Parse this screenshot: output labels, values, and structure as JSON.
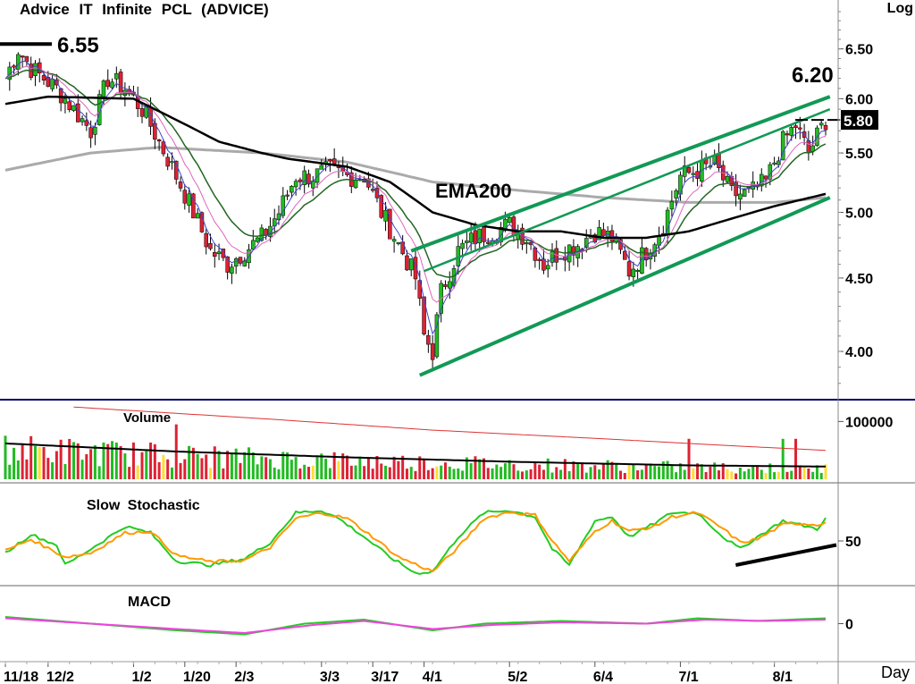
{
  "header": {
    "title": "Advice  IT  Infinite  PCL  (ADVICE)",
    "scale_label": "Log",
    "x_unit_label": "Day"
  },
  "colors": {
    "up_candle": "#22bb22",
    "down_candle": "#dd2233",
    "ema200": "#aaaaaa",
    "ema_black": "#000000",
    "ema_green": "#226622",
    "ema_pink": "#dd66bb",
    "ema_blue": "#4444cc",
    "channel": "#119955",
    "stoch_k": "#22cc22",
    "stoch_d": "#ff9900",
    "macd": "#22cc22",
    "signal": "#ee44dd",
    "volume_avg_red": "#dd3333",
    "divider": "#000066"
  },
  "annotations": {
    "high_label": "6.55",
    "target_label": "6.20",
    "last_label": "5.80",
    "ema_label": "EMA200"
  },
  "panels": {
    "volume_label": "Volume",
    "stoch_label": "Slow  Stochastic",
    "macd_label": "MACD"
  },
  "chart_data": [
    {
      "type": "candlestick",
      "title": "Advice  IT  Infinite  PCL  (ADVICE)",
      "y_scale": "log",
      "ylim": [
        3.75,
        6.95
      ],
      "y_ticks": [
        "6.50",
        "6.00",
        "5.50",
        "5.00",
        "4.50",
        "4.00"
      ],
      "x_tick_labels": [
        "11/18",
        "12/2",
        "1/2",
        "1/20",
        "2/3",
        "3/3",
        "3/17",
        "4/1",
        "5/2",
        "6/4",
        "7/1",
        "8/1"
      ],
      "x_tick_index": [
        0,
        10,
        30,
        42,
        54,
        74,
        86,
        98,
        118,
        138,
        158,
        180
      ],
      "trading_days": 193,
      "close_key_points": [
        [
          0,
          6.2
        ],
        [
          3,
          6.5
        ],
        [
          6,
          6.3
        ],
        [
          12,
          6.1
        ],
        [
          20,
          5.7
        ],
        [
          24,
          6.2
        ],
        [
          28,
          6.1
        ],
        [
          32,
          5.9
        ],
        [
          36,
          5.6
        ],
        [
          40,
          5.3
        ],
        [
          44,
          5.0
        ],
        [
          48,
          4.7
        ],
        [
          52,
          4.6
        ],
        [
          56,
          4.7
        ],
        [
          60,
          4.8
        ],
        [
          64,
          5.0
        ],
        [
          68,
          5.3
        ],
        [
          72,
          5.3
        ],
        [
          76,
          5.35
        ],
        [
          80,
          5.3
        ],
        [
          84,
          5.3
        ],
        [
          88,
          5.0
        ],
        [
          92,
          4.75
        ],
        [
          96,
          4.5
        ],
        [
          98,
          4.1
        ],
        [
          100,
          4.0
        ],
        [
          102,
          4.4
        ],
        [
          106,
          4.7
        ],
        [
          110,
          4.8
        ],
        [
          114,
          4.85
        ],
        [
          118,
          4.9
        ],
        [
          122,
          4.8
        ],
        [
          126,
          4.6
        ],
        [
          130,
          4.7
        ],
        [
          134,
          4.75
        ],
        [
          138,
          4.85
        ],
        [
          142,
          4.8
        ],
        [
          146,
          4.55
        ],
        [
          150,
          4.7
        ],
        [
          154,
          4.9
        ],
        [
          158,
          5.3
        ],
        [
          162,
          5.35
        ],
        [
          166,
          5.4
        ],
        [
          170,
          5.15
        ],
        [
          174,
          5.15
        ],
        [
          178,
          5.25
        ],
        [
          182,
          5.6
        ],
        [
          185,
          5.75
        ],
        [
          188,
          5.5
        ],
        [
          192,
          5.8
        ]
      ],
      "ema200_key_points": [
        [
          0,
          5.35
        ],
        [
          20,
          5.5
        ],
        [
          36,
          5.55
        ],
        [
          60,
          5.5
        ],
        [
          80,
          5.42
        ],
        [
          100,
          5.25
        ],
        [
          120,
          5.18
        ],
        [
          140,
          5.12
        ],
        [
          160,
          5.08
        ],
        [
          180,
          5.08
        ],
        [
          192,
          5.12
        ]
      ],
      "ema50_key_points": [
        [
          0,
          5.95
        ],
        [
          10,
          6.02
        ],
        [
          30,
          6.0
        ],
        [
          40,
          5.8
        ],
        [
          50,
          5.6
        ],
        [
          60,
          5.5
        ],
        [
          66,
          5.45
        ],
        [
          80,
          5.38
        ],
        [
          90,
          5.25
        ],
        [
          100,
          5.0
        ],
        [
          110,
          4.9
        ],
        [
          120,
          4.85
        ],
        [
          130,
          4.85
        ],
        [
          140,
          4.8
        ],
        [
          150,
          4.8
        ],
        [
          160,
          4.85
        ],
        [
          170,
          4.95
        ],
        [
          180,
          5.05
        ],
        [
          192,
          5.15
        ]
      ],
      "channel_lines": [
        {
          "name": "upper",
          "points": [
            [
              95,
              4.7
            ],
            [
              193,
              6.02
            ]
          ]
        },
        {
          "name": "middle",
          "points": [
            [
              98,
              4.55
            ],
            [
              193,
              5.9
            ]
          ]
        },
        {
          "name": "lower",
          "points": [
            [
              97,
              3.85
            ],
            [
              193,
              5.12
            ]
          ]
        }
      ],
      "annotations": [
        {
          "text": "6.55",
          "value": 6.55
        },
        {
          "text": "6.20",
          "value": 6.2
        },
        {
          "text": "5.80",
          "value": 5.8
        },
        {
          "text": "EMA200",
          "value": 5.3
        }
      ]
    },
    {
      "type": "bar",
      "title": "Volume",
      "y_ticks": [
        "100000"
      ],
      "ylim": [
        0,
        130000
      ],
      "avg_black_key_points": [
        [
          0,
          62000
        ],
        [
          40,
          48000
        ],
        [
          80,
          38000
        ],
        [
          120,
          30000
        ],
        [
          160,
          24000
        ],
        [
          192,
          22000
        ]
      ],
      "avg_red_key_points": [
        [
          16,
          125000
        ],
        [
          60,
          105000
        ],
        [
          100,
          85000
        ],
        [
          140,
          70000
        ],
        [
          170,
          58000
        ],
        [
          192,
          50000
        ]
      ],
      "spike_days": [
        [
          40,
          95000
        ],
        [
          160,
          70000
        ],
        [
          182,
          70000
        ],
        [
          185,
          70000
        ]
      ]
    },
    {
      "type": "line",
      "title": "Slow  Stochastic",
      "y_ticks": [
        "50"
      ],
      "ylim": [
        0,
        100
      ],
      "k_key_points": [
        [
          0,
          35
        ],
        [
          6,
          58
        ],
        [
          12,
          45
        ],
        [
          14,
          20
        ],
        [
          20,
          40
        ],
        [
          28,
          68
        ],
        [
          34,
          60
        ],
        [
          40,
          25
        ],
        [
          48,
          20
        ],
        [
          56,
          28
        ],
        [
          62,
          48
        ],
        [
          68,
          85
        ],
        [
          74,
          88
        ],
        [
          78,
          78
        ],
        [
          84,
          55
        ],
        [
          90,
          30
        ],
        [
          96,
          10
        ],
        [
          100,
          12
        ],
        [
          106,
          55
        ],
        [
          112,
          85
        ],
        [
          118,
          88
        ],
        [
          124,
          80
        ],
        [
          128,
          40
        ],
        [
          132,
          20
        ],
        [
          138,
          75
        ],
        [
          142,
          80
        ],
        [
          146,
          55
        ],
        [
          152,
          72
        ],
        [
          156,
          85
        ],
        [
          162,
          85
        ],
        [
          168,
          55
        ],
        [
          172,
          40
        ],
        [
          176,
          55
        ],
        [
          182,
          75
        ],
        [
          186,
          70
        ],
        [
          190,
          65
        ],
        [
          192,
          78
        ]
      ],
      "d_key_points": [
        [
          0,
          38
        ],
        [
          6,
          52
        ],
        [
          14,
          30
        ],
        [
          20,
          35
        ],
        [
          28,
          60
        ],
        [
          34,
          62
        ],
        [
          40,
          32
        ],
        [
          48,
          24
        ],
        [
          56,
          26
        ],
        [
          62,
          42
        ],
        [
          68,
          78
        ],
        [
          74,
          85
        ],
        [
          80,
          78
        ],
        [
          86,
          55
        ],
        [
          92,
          30
        ],
        [
          100,
          12
        ],
        [
          106,
          42
        ],
        [
          112,
          78
        ],
        [
          118,
          86
        ],
        [
          124,
          82
        ],
        [
          128,
          50
        ],
        [
          132,
          25
        ],
        [
          138,
          62
        ],
        [
          142,
          75
        ],
        [
          146,
          62
        ],
        [
          152,
          68
        ],
        [
          156,
          80
        ],
        [
          162,
          85
        ],
        [
          168,
          65
        ],
        [
          172,
          48
        ],
        [
          176,
          52
        ],
        [
          182,
          70
        ],
        [
          186,
          72
        ],
        [
          190,
          70
        ],
        [
          192,
          74
        ]
      ],
      "trendline": [
        [
          172,
          20
        ],
        [
          192,
          45
        ]
      ]
    },
    {
      "type": "line",
      "title": "MACD",
      "y_ticks": [
        "0"
      ],
      "ylim": [
        -0.25,
        0.25
      ],
      "macd_key_points": [
        [
          0,
          0.05
        ],
        [
          20,
          0.0
        ],
        [
          40,
          -0.05
        ],
        [
          56,
          -0.08
        ],
        [
          70,
          0.0
        ],
        [
          84,
          0.03
        ],
        [
          100,
          -0.05
        ],
        [
          112,
          0.0
        ],
        [
          130,
          0.02
        ],
        [
          150,
          0.0
        ],
        [
          162,
          0.04
        ],
        [
          176,
          0.02
        ],
        [
          192,
          0.04
        ]
      ],
      "signal_key_points": [
        [
          0,
          0.04
        ],
        [
          20,
          0.0
        ],
        [
          40,
          -0.04
        ],
        [
          56,
          -0.07
        ],
        [
          72,
          -0.01
        ],
        [
          84,
          0.02
        ],
        [
          100,
          -0.04
        ],
        [
          114,
          -0.01
        ],
        [
          130,
          0.01
        ],
        [
          150,
          0.0
        ],
        [
          164,
          0.03
        ],
        [
          178,
          0.02
        ],
        [
          192,
          0.03
        ]
      ]
    }
  ]
}
